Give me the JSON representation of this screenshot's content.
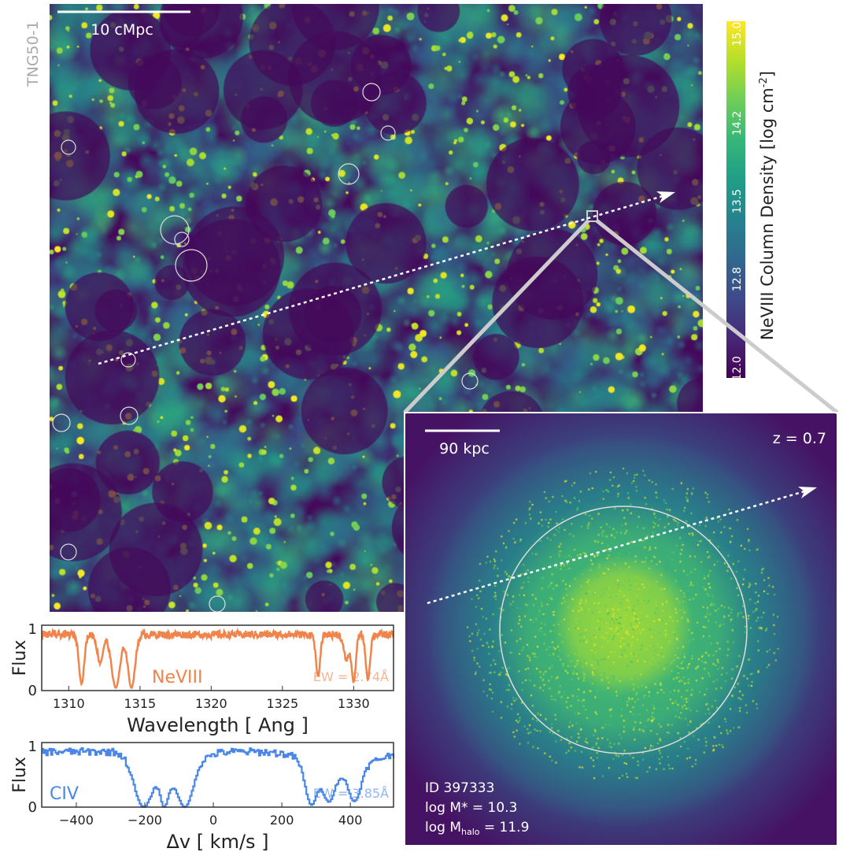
{
  "figure": {
    "simulation_label": "TNG50-1",
    "map_scalebar_label": "10 cMpc",
    "inset_scalebar_label": "90 kpc",
    "redshift_label": "z = 0.7",
    "galaxy_id": "ID 397333",
    "stellar_mass_label": "log M* = 10.3",
    "halo_mass_prefix": "log M",
    "halo_mass_sub": "halo",
    "halo_mass_suffix": " = 11.9"
  },
  "colors": {
    "nev": "#f0844a",
    "civ": "#4a86e8",
    "bg_low": "#440154",
    "bg_high": "#fde725"
  },
  "chart_data": [
    {
      "type": "colorbar",
      "label": "NeVIII Column Density [log cm",
      "label_sup": "-2",
      "label_end": "]",
      "range": [
        11.9,
        15.1
      ],
      "ticks": [
        "12.0",
        "12.8",
        "13.5",
        "14.2",
        "15.0"
      ],
      "tick_values": [
        12.0,
        12.8,
        13.5,
        14.2,
        15.0
      ],
      "colormap": "viridis"
    },
    {
      "type": "line",
      "ion": "NeVIII",
      "ew_label": "EW = 2.74Å",
      "xlabel": "Wavelength [ Ang ]",
      "ylabel": "Flux",
      "xlim": [
        1308.1,
        1332.8
      ],
      "ylim": [
        0,
        1.05
      ],
      "xticks": [
        "1310",
        "1315",
        "1320",
        "1325",
        "1330"
      ],
      "xtick_values": [
        1310,
        1315,
        1320,
        1325,
        1330
      ],
      "yticks": [
        "0",
        "1"
      ],
      "continuum": 0.9,
      "absorbers": [
        {
          "center": 1310.9,
          "depth": 0.88,
          "width": 0.18
        },
        {
          "center": 1312.2,
          "depth": 0.5,
          "width": 0.2
        },
        {
          "center": 1313.3,
          "depth": 0.95,
          "width": 0.3
        },
        {
          "center": 1314.4,
          "depth": 0.95,
          "width": 0.25
        },
        {
          "center": 1327.5,
          "depth": 0.75,
          "width": 0.15
        },
        {
          "center": 1329.5,
          "depth": 0.45,
          "width": 0.2
        },
        {
          "center": 1330.0,
          "depth": 0.85,
          "width": 0.15
        },
        {
          "center": 1331.0,
          "depth": 0.8,
          "width": 0.15
        }
      ]
    },
    {
      "type": "line",
      "ion": "CIV",
      "ew_label": "EW = 3.85Å",
      "xlabel": "Δv [ km/s ]",
      "ylabel": "Flux",
      "xlim": [
        -501,
        526
      ],
      "ylim": [
        0,
        1.05
      ],
      "xticks": [
        "−400",
        "−200",
        "0",
        "200",
        "400"
      ],
      "xtick_values": [
        -400,
        -200,
        0,
        200,
        400
      ],
      "yticks": [
        "0",
        "1"
      ],
      "continuum": 0.9,
      "absorbers": [
        {
          "center": -205,
          "depth": 1.0,
          "width": 28
        },
        {
          "center": -145,
          "depth": 1.0,
          "width": 12
        },
        {
          "center": -85,
          "depth": 1.0,
          "width": 20
        },
        {
          "center": -110,
          "depth": 0.5,
          "width": 50
        },
        {
          "center": 285,
          "depth": 0.95,
          "width": 18
        },
        {
          "center": 335,
          "depth": 0.85,
          "width": 18
        },
        {
          "center": 410,
          "depth": 0.85,
          "width": 18
        },
        {
          "center": 370,
          "depth": 0.35,
          "width": 80
        }
      ]
    }
  ]
}
